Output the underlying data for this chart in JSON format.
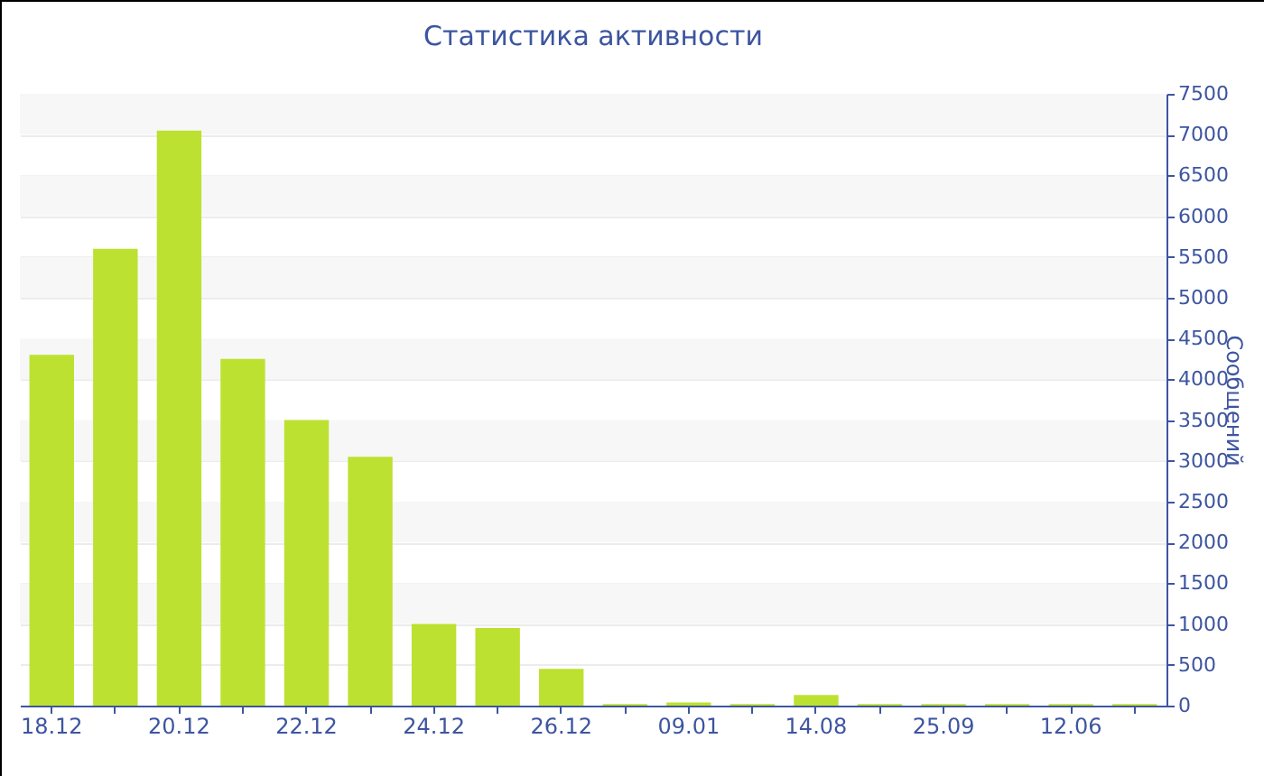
{
  "chart_data": {
    "type": "bar",
    "title": "Статистика активности",
    "ylabel": "Сообщений",
    "categories": [
      "18.12",
      null,
      "20.12",
      null,
      "22.12",
      null,
      "24.12",
      null,
      "26.12",
      null,
      "09.01",
      null,
      "14.08",
      null,
      "25.09",
      null,
      "12.06",
      null
    ],
    "values": [
      4300,
      5600,
      7050,
      4250,
      3500,
      3050,
      1000,
      950,
      450,
      20,
      40,
      20,
      130,
      20,
      20,
      20,
      20,
      20
    ],
    "color": "#bde130",
    "ylim": [
      0,
      7500
    ],
    "yticks": [
      0,
      500,
      1000,
      1500,
      2000,
      2500,
      3000,
      3500,
      4000,
      4500,
      5000,
      5500,
      6000,
      6500,
      7000,
      7500
    ],
    "grid": "y"
  }
}
